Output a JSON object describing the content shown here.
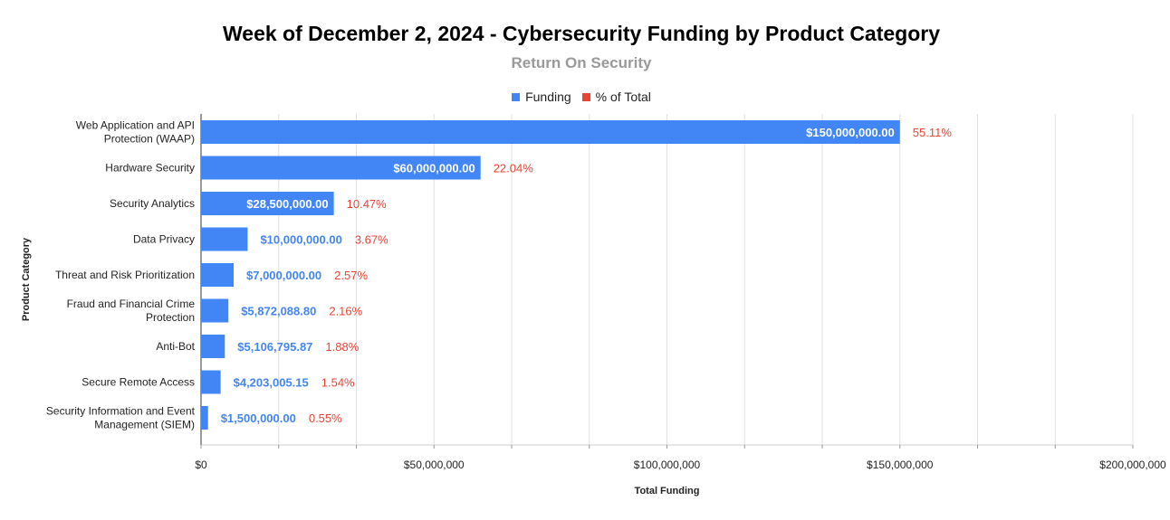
{
  "chart_data": {
    "type": "bar",
    "orientation": "horizontal",
    "title": "Week of December 2, 2024 - Cybersecurity Funding by Product Category",
    "subtitle": "Return On Security",
    "xlabel": "Total Funding",
    "ylabel": "Product Category",
    "xlim": [
      0,
      200000000
    ],
    "x_ticks": [
      0,
      50000000,
      100000000,
      150000000,
      200000000
    ],
    "x_tick_labels": [
      "$0",
      "$50,000,000",
      "$100,000,000",
      "$150,000,000",
      "$200,000,000"
    ],
    "legend": [
      {
        "name": "Funding",
        "color": "#4285f4"
      },
      {
        "name": "% of Total",
        "color": "#ea4335"
      }
    ],
    "legend_position": "top",
    "categories": [
      [
        "Web Application and API",
        "Protection (WAAP)"
      ],
      [
        "Hardware Security"
      ],
      [
        "Security Analytics"
      ],
      [
        "Data Privacy"
      ],
      [
        "Threat and Risk Prioritization"
      ],
      [
        "Fraud and Financial Crime",
        "Protection"
      ],
      [
        "Anti-Bot"
      ],
      [
        "Secure Remote Access"
      ],
      [
        "Security Information and Event",
        "Management (SIEM)"
      ]
    ],
    "series": [
      {
        "name": "Funding",
        "values": [
          150000000,
          60000000,
          28500000,
          10000000,
          7000000,
          5872088.8,
          5106795.87,
          4203005.15,
          1500000
        ],
        "labels": [
          "$150,000,000.00",
          "$60,000,000.00",
          "$28,500,000.00",
          "$10,000,000.00",
          "$7,000,000.00",
          "$5,872,088.80",
          "$5,106,795.87",
          "$4,203,005.15",
          "$1,500,000.00"
        ]
      },
      {
        "name": "% of Total",
        "labels": [
          "55.11%",
          "22.04%",
          "10.47%",
          "3.67%",
          "2.57%",
          "2.16%",
          "1.88%",
          "1.54%",
          "0.55%"
        ]
      }
    ],
    "label_text_inside_color": "#ffffff",
    "bar_color": "#4285f4",
    "percent_color": "#ea4335",
    "grid": true
  }
}
